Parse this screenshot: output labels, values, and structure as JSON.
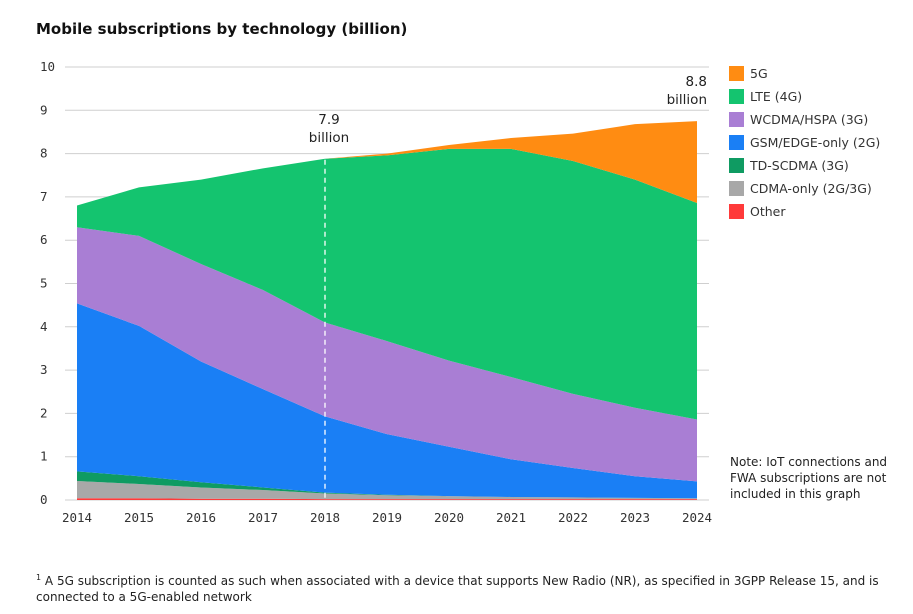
{
  "chart_data": {
    "type": "area",
    "title": "Mobile subscriptions by technology (billion)",
    "xlabel": "",
    "ylabel": "",
    "x": [
      "2014",
      "2015",
      "2016",
      "2017",
      "2018",
      "2019",
      "2020",
      "2021",
      "2022",
      "2023",
      "2024"
    ],
    "ylim": [
      0,
      10
    ],
    "yticks": [
      "0",
      "1",
      "2",
      "3",
      "4",
      "5",
      "6",
      "7",
      "8",
      "9",
      "10"
    ],
    "grid": true,
    "legend_position": "right",
    "stack_order": "bottom-to-top",
    "series": [
      {
        "name": "Other",
        "color": "#ff3a3a",
        "values": [
          0.04,
          0.04,
          0.03,
          0.03,
          0.02,
          0.02,
          0.02,
          0.02,
          0.02,
          0.02,
          0.02
        ]
      },
      {
        "name": "CDMA-only (2G/3G)",
        "color": "#a8a8a8",
        "values": [
          0.4,
          0.33,
          0.26,
          0.2,
          0.13,
          0.09,
          0.07,
          0.05,
          0.04,
          0.03,
          0.02
        ]
      },
      {
        "name": "TD-SCDMA (3G)",
        "color": "#0f9b62",
        "values": [
          0.22,
          0.18,
          0.12,
          0.06,
          0.02,
          0.01,
          0.0,
          0.0,
          0.0,
          0.0,
          0.0
        ]
      },
      {
        "name": "GSM/EDGE-only (2G)",
        "color": "#1a7ff5",
        "values": [
          3.88,
          3.47,
          2.79,
          2.27,
          1.76,
          1.4,
          1.14,
          0.87,
          0.68,
          0.5,
          0.39
        ]
      },
      {
        "name": "WCDMA/HSPA (3G)",
        "color": "#a97ed4",
        "values": [
          1.76,
          2.08,
          2.25,
          2.29,
          2.17,
          2.15,
          1.99,
          1.9,
          1.71,
          1.58,
          1.43
        ]
      },
      {
        "name": "LTE (4G)",
        "color": "#14c46f",
        "values": [
          0.5,
          1.12,
          1.95,
          2.81,
          3.78,
          4.29,
          4.89,
          5.27,
          5.38,
          5.27,
          5.0
        ]
      },
      {
        "name": "5G",
        "color": "#ff8c12",
        "values": [
          0,
          0,
          0,
          0,
          0,
          0.04,
          0.09,
          0.25,
          0.63,
          1.28,
          1.89
        ]
      }
    ],
    "annotations": [
      {
        "x": "2018",
        "text_line1": "7.9",
        "text_line2": "billion",
        "dashed_line": true
      },
      {
        "x": "2024",
        "text_line1": "8.8",
        "text_line2": "billion",
        "dashed_line": false
      }
    ],
    "legend_order": [
      "5G",
      "LTE (4G)",
      "WCDMA/HSPA (3G)",
      "GSM/EDGE-only (2G)",
      "TD-SCDMA (3G)",
      "CDMA-only (2G/3G)",
      "Other"
    ]
  },
  "note": "Note: IoT connections and FWA subscriptions are not included in this graph",
  "footnote_marker": "1",
  "footnote": "A 5G subscription is counted as such when associated with a device that supports New Radio (NR), as specified in 3GPP Release 15, and is connected to a 5G-enabled network"
}
